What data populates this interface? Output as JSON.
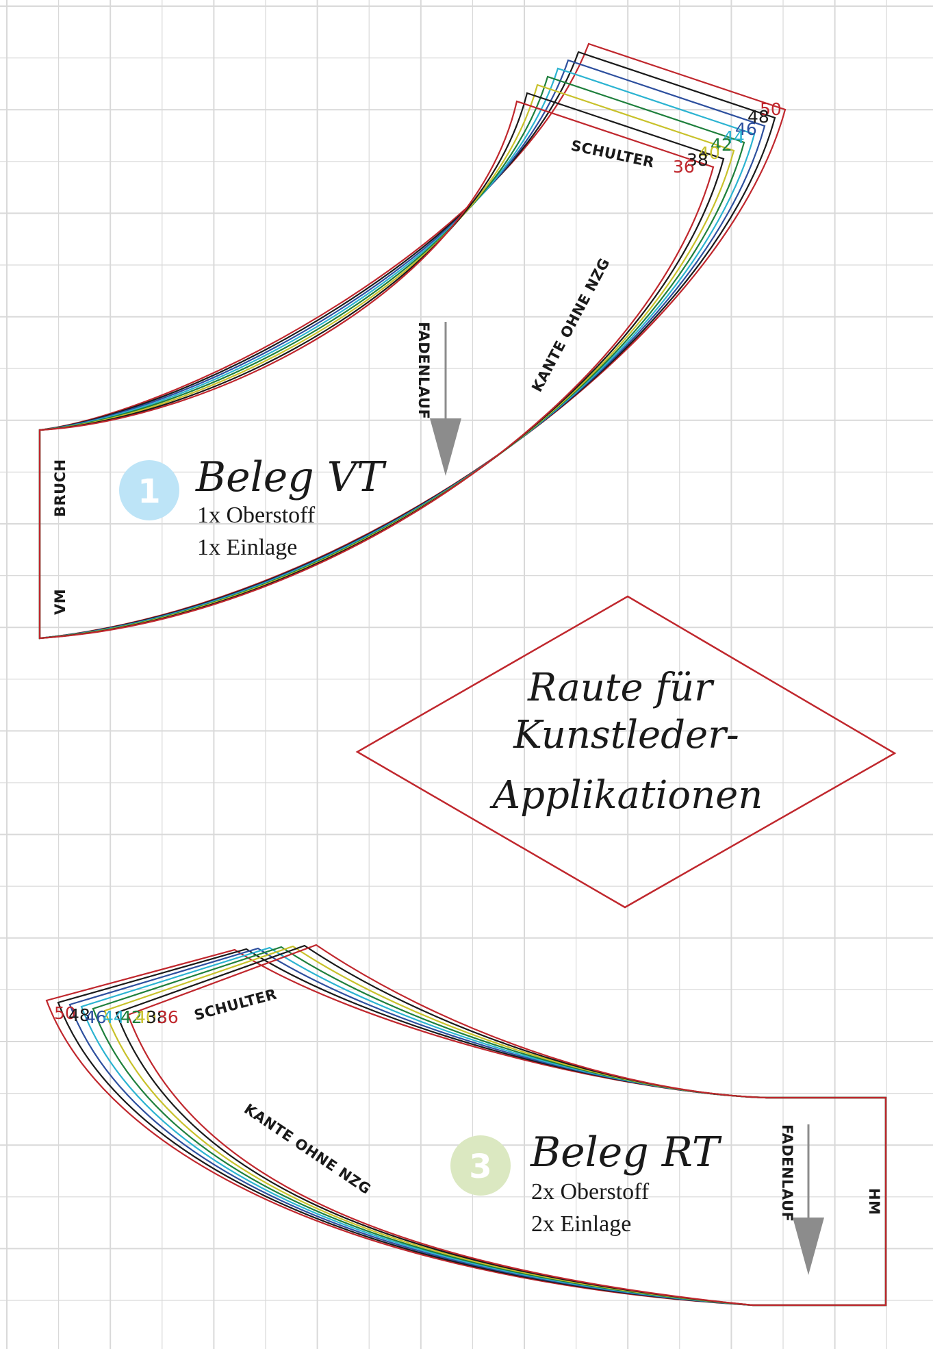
{
  "colors": {
    "grid": "#d9d9d9",
    "outline": "#c0272d",
    "arrow": "#8c8c8c",
    "badge1": "#bde4f7",
    "badge3": "#dbe8c1",
    "text": "#1a1a1a"
  },
  "sizes": [
    {
      "label": "36",
      "color": "#c0272d"
    },
    {
      "label": "38",
      "color": "#1a1a1a"
    },
    {
      "label": "40",
      "color": "#c8c12a"
    },
    {
      "label": "42",
      "color": "#1e7f3c"
    },
    {
      "label": "44",
      "color": "#2bb3d1"
    },
    {
      "label": "46",
      "color": "#2d4f9e"
    },
    {
      "label": "48",
      "color": "#1a1a1a"
    },
    {
      "label": "50",
      "color": "#c0272d"
    }
  ],
  "piece1": {
    "number": "1",
    "title": "Beleg VT",
    "line1": "1x Oberstoff",
    "line2": "1x Einlage",
    "bruch": "BRUCH",
    "vm": "VM",
    "schulter": "SCHULTER",
    "kante": "KANTE OHNE NZG",
    "fadenlauf": "FADENLAUF"
  },
  "diamond": {
    "line1": "Raute für",
    "line2": "Kunstleder-",
    "line3": "Applikationen"
  },
  "piece3": {
    "number": "3",
    "title": "Beleg RT",
    "line1": "2x Oberstoff",
    "line2": "2x Einlage",
    "hm": "HM",
    "schulter": "SCHULTER",
    "kante": "KANTE OHNE NZG",
    "fadenlauf": "FADENLAUF"
  }
}
